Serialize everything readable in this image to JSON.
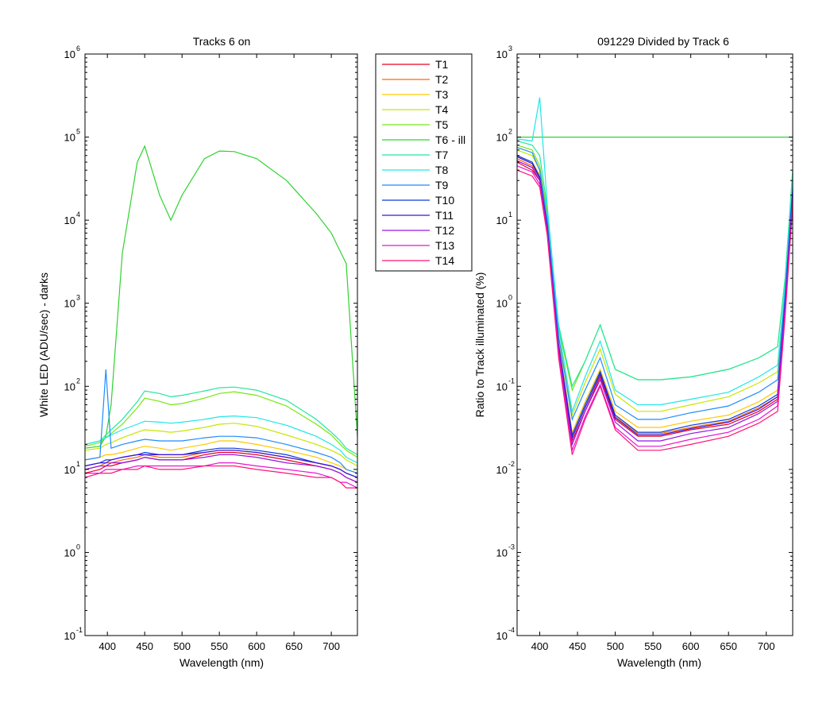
{
  "colors": [
    "#e8001c",
    "#ff6a00",
    "#ffc800",
    "#c8e600",
    "#78e614",
    "#30d230",
    "#22e6a0",
    "#22e6e6",
    "#1e8cff",
    "#0a3cdc",
    "#3c14dc",
    "#9614e6",
    "#e614d2",
    "#ff1478"
  ],
  "chart_data": [
    {
      "type": "line",
      "title": "Tracks 6 on",
      "xlabel": "Wavelength (nm)",
      "ylabel": "White LED  (ADU/sec) - darks",
      "xlim": [
        370,
        735
      ],
      "ylim": [
        0.1,
        1000000
      ],
      "yscale": "log",
      "x_ticks": [
        "400",
        "450",
        "500",
        "550",
        "600",
        "650",
        "700"
      ],
      "y_ticks": [
        {
          "base": "10",
          "exp": "-1"
        },
        {
          "base": "10",
          "exp": "0"
        },
        {
          "base": "10",
          "exp": "1"
        },
        {
          "base": "10",
          "exp": "2"
        },
        {
          "base": "10",
          "exp": "3"
        },
        {
          "base": "10",
          "exp": "4"
        },
        {
          "base": "10",
          "exp": "5"
        },
        {
          "base": "10",
          "exp": "6"
        }
      ],
      "x": [
        370,
        390,
        398,
        405,
        420,
        440,
        450,
        470,
        485,
        500,
        530,
        550,
        570,
        600,
        640,
        680,
        700,
        712,
        720,
        735
      ],
      "series": [
        {
          "name": "T1",
          "values": [
            9,
            10,
            11,
            11,
            12,
            13,
            14,
            13,
            13,
            13,
            15,
            16,
            16,
            15,
            13,
            11,
            10,
            9,
            8,
            7
          ]
        },
        {
          "name": "T2",
          "values": [
            10,
            11,
            12,
            12,
            13,
            14,
            15,
            14,
            14,
            14,
            16,
            17,
            17,
            16,
            14,
            12,
            11,
            10,
            9,
            8
          ]
        },
        {
          "name": "T3",
          "values": [
            13,
            14,
            15,
            15,
            16,
            18,
            19,
            18,
            17,
            18,
            20,
            22,
            22,
            20,
            17,
            14,
            12,
            11,
            10,
            9
          ]
        },
        {
          "name": "T4",
          "values": [
            17,
            18,
            20,
            21,
            24,
            28,
            30,
            29,
            28,
            29,
            32,
            35,
            36,
            33,
            26,
            20,
            17,
            15,
            13,
            11
          ]
        },
        {
          "name": "T5",
          "values": [
            19,
            21,
            24,
            27,
            35,
            55,
            72,
            66,
            60,
            62,
            72,
            82,
            86,
            78,
            58,
            35,
            26,
            20,
            17,
            14
          ]
        },
        {
          "name": "T6 - ill",
          "values": [
            18,
            19,
            25,
            60,
            4000,
            50000,
            78000,
            20000,
            10000,
            20000,
            55000,
            68000,
            67000,
            55000,
            30000,
            12000,
            7000,
            4200,
            3000,
            25
          ]
        },
        {
          "name": "T7",
          "values": [
            20,
            22,
            26,
            30,
            40,
            65,
            88,
            82,
            75,
            78,
            88,
            96,
            98,
            90,
            68,
            40,
            28,
            22,
            18,
            15
          ]
        },
        {
          "name": "T8",
          "values": [
            20,
            22,
            24,
            26,
            30,
            35,
            38,
            37,
            36,
            37,
            40,
            43,
            44,
            42,
            34,
            25,
            20,
            17,
            14,
            12
          ]
        },
        {
          "name": "T9",
          "values": [
            13,
            14,
            160,
            18,
            20,
            22,
            23,
            22,
            22,
            22,
            24,
            25,
            25,
            24,
            20,
            16,
            14,
            12,
            10,
            9
          ]
        },
        {
          "name": "T10",
          "values": [
            11,
            12,
            13,
            13,
            14,
            15,
            16,
            15,
            15,
            15,
            17,
            18,
            18,
            17,
            15,
            12,
            11,
            10,
            9,
            8
          ]
        },
        {
          "name": "T11",
          "values": [
            11,
            12,
            12,
            13,
            14,
            15,
            15,
            15,
            15,
            15,
            16,
            17,
            17,
            16,
            14,
            12,
            11,
            10,
            9,
            8
          ]
        },
        {
          "name": "T12",
          "values": [
            10,
            11,
            11,
            12,
            12,
            13,
            14,
            13,
            13,
            13,
            14,
            15,
            15,
            14,
            12,
            11,
            10,
            9,
            8,
            7
          ]
        },
        {
          "name": "T13",
          "values": [
            9,
            9,
            10,
            10,
            10,
            11,
            11,
            11,
            11,
            11,
            11,
            12,
            12,
            11,
            10,
            9,
            8,
            7,
            7,
            6
          ]
        },
        {
          "name": "T14",
          "values": [
            8,
            9,
            9,
            9,
            10,
            10,
            11,
            10,
            10,
            10,
            11,
            11,
            11,
            10,
            9,
            8,
            8,
            7,
            6,
            6
          ]
        }
      ],
      "legend": "outside-right"
    },
    {
      "type": "line",
      "title": "091229 Divided by Track 6",
      "xlabel": "Wavelength (nm)",
      "ylabel": "Ratio to Track illuminated (%)",
      "xlim": [
        370,
        735
      ],
      "ylim": [
        0.0001,
        1000
      ],
      "yscale": "log",
      "x_ticks": [
        "400",
        "450",
        "500",
        "550",
        "600",
        "650",
        "700"
      ],
      "y_ticks": [
        {
          "base": "10",
          "exp": "-4"
        },
        {
          "base": "10",
          "exp": "-3"
        },
        {
          "base": "10",
          "exp": "-2"
        },
        {
          "base": "10",
          "exp": "-1"
        },
        {
          "base": "10",
          "exp": "0"
        },
        {
          "base": "10",
          "exp": "1"
        },
        {
          "base": "10",
          "exp": "2"
        },
        {
          "base": "10",
          "exp": "3"
        }
      ],
      "x": [
        370,
        390,
        400,
        410,
        425,
        443,
        460,
        480,
        500,
        530,
        560,
        600,
        650,
        690,
        715,
        725,
        735
      ],
      "series": [
        {
          "name": "T1",
          "values": [
            50,
            40,
            30,
            8,
            0.3,
            0.022,
            0.05,
            0.13,
            0.04,
            0.025,
            0.025,
            0.03,
            0.035,
            0.05,
            0.07,
            1.0,
            20
          ]
        },
        {
          "name": "T2",
          "values": [
            55,
            45,
            32,
            8.5,
            0.32,
            0.024,
            0.055,
            0.14,
            0.043,
            0.027,
            0.027,
            0.032,
            0.038,
            0.055,
            0.075,
            1.1,
            22
          ]
        },
        {
          "name": "T3",
          "values": [
            60,
            50,
            35,
            9,
            0.35,
            0.028,
            0.065,
            0.16,
            0.05,
            0.032,
            0.032,
            0.038,
            0.045,
            0.065,
            0.09,
            1.2,
            24
          ]
        },
        {
          "name": "T4",
          "values": [
            70,
            60,
            40,
            10,
            0.4,
            0.045,
            0.11,
            0.28,
            0.08,
            0.05,
            0.05,
            0.06,
            0.075,
            0.11,
            0.15,
            1.5,
            28
          ]
        },
        {
          "name": "T5",
          "values": [
            80,
            70,
            45,
            12,
            0.5,
            0.09,
            0.2,
            0.55,
            0.16,
            0.12,
            0.12,
            0.13,
            0.16,
            0.22,
            0.3,
            2.0,
            35
          ]
        },
        {
          "name": "T6 - ill",
          "values": [
            100,
            100,
            100,
            100,
            100,
            100,
            100,
            100,
            100,
            100,
            100,
            100,
            100,
            100,
            100,
            100,
            100
          ]
        },
        {
          "name": "T7",
          "values": [
            90,
            80,
            60,
            14,
            0.55,
            0.1,
            0.2,
            0.55,
            0.16,
            0.12,
            0.12,
            0.13,
            0.16,
            0.22,
            0.3,
            2.0,
            40
          ]
        },
        {
          "name": "T8",
          "values": [
            95,
            90,
            300,
            15,
            0.5,
            0.05,
            0.13,
            0.35,
            0.09,
            0.06,
            0.06,
            0.07,
            0.085,
            0.13,
            0.18,
            1.6,
            30
          ]
        },
        {
          "name": "T9",
          "values": [
            75,
            65,
            40,
            10,
            0.4,
            0.04,
            0.09,
            0.22,
            0.06,
            0.04,
            0.04,
            0.048,
            0.058,
            0.085,
            0.12,
            1.3,
            25
          ]
        },
        {
          "name": "T10",
          "values": [
            60,
            50,
            33,
            8.5,
            0.32,
            0.026,
            0.06,
            0.15,
            0.045,
            0.028,
            0.028,
            0.034,
            0.04,
            0.058,
            0.08,
            1.1,
            22
          ]
        },
        {
          "name": "T11",
          "values": [
            58,
            48,
            32,
            8,
            0.3,
            0.024,
            0.055,
            0.14,
            0.042,
            0.026,
            0.026,
            0.031,
            0.037,
            0.053,
            0.075,
            1.0,
            21
          ]
        },
        {
          "name": "T12",
          "values": [
            52,
            43,
            30,
            7.5,
            0.28,
            0.02,
            0.05,
            0.12,
            0.037,
            0.022,
            0.022,
            0.027,
            0.032,
            0.047,
            0.066,
            0.9,
            19
          ]
        },
        {
          "name": "T13",
          "values": [
            45,
            38,
            27,
            7,
            0.25,
            0.017,
            0.043,
            0.105,
            0.032,
            0.019,
            0.019,
            0.023,
            0.028,
            0.04,
            0.058,
            0.8,
            17
          ]
        },
        {
          "name": "T14",
          "values": [
            40,
            34,
            25,
            6.5,
            0.22,
            0.015,
            0.04,
            0.1,
            0.03,
            0.017,
            0.017,
            0.02,
            0.025,
            0.036,
            0.05,
            0.7,
            15
          ]
        }
      ]
    }
  ]
}
